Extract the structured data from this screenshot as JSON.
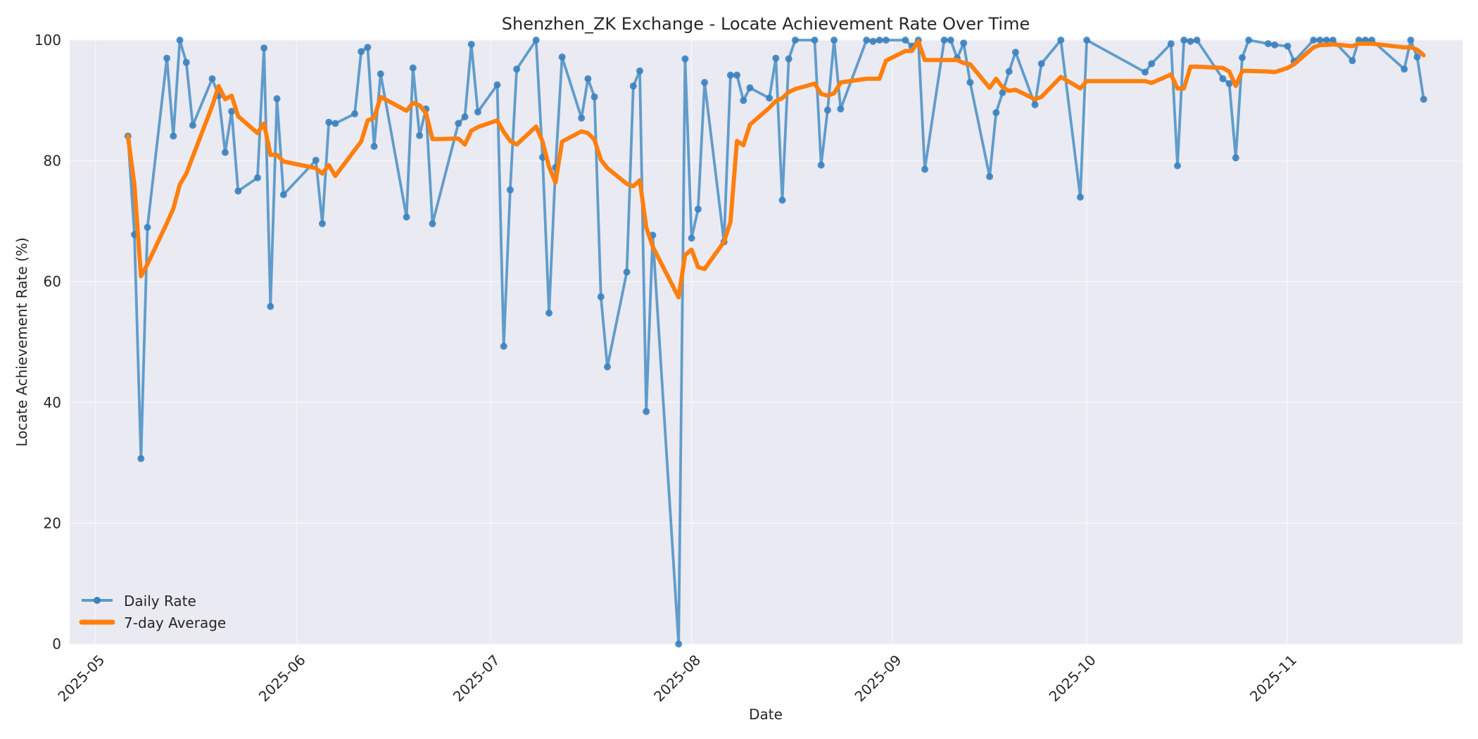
{
  "chart_data": {
    "type": "line",
    "title": "Shenzhen_ZK Exchange - Locate Achievement Rate Over Time",
    "xlabel": "Date",
    "ylabel": "Locate Achievement Rate (%)",
    "ylim": [
      0,
      100
    ],
    "xlim": [
      "2025-04-27",
      "2025-11-28"
    ],
    "grid": true,
    "legend_position": "lower left",
    "y_ticks": [
      0,
      20,
      40,
      60,
      80,
      100
    ],
    "x_ticks": [
      "2025-05",
      "2025-06",
      "2025-07",
      "2025-08",
      "2025-09",
      "2025-10",
      "2025-11"
    ],
    "colors": {
      "daily": "#4c91c5",
      "avg": "#ff7f0e",
      "plot_bg": "#eaeaf2",
      "grid": "#f4f4f8"
    },
    "series": [
      {
        "name": "Daily Rate",
        "style": "line-with-markers",
        "points": [
          [
            "2025-05-06",
            84.1
          ],
          [
            "2025-05-07",
            67.8
          ],
          [
            "2025-05-08",
            30.7
          ],
          [
            "2025-05-09",
            69.0
          ],
          [
            "2025-05-12",
            97.0
          ],
          [
            "2025-05-13",
            84.1
          ],
          [
            "2025-05-14",
            100.0
          ],
          [
            "2025-05-15",
            96.3
          ],
          [
            "2025-05-16",
            85.9
          ],
          [
            "2025-05-19",
            93.6
          ],
          [
            "2025-05-20",
            90.8
          ],
          [
            "2025-05-21",
            81.4
          ],
          [
            "2025-05-22",
            88.2
          ],
          [
            "2025-05-23",
            75.0
          ],
          [
            "2025-05-26",
            77.2
          ],
          [
            "2025-05-27",
            98.7
          ],
          [
            "2025-05-28",
            55.9
          ],
          [
            "2025-05-29",
            90.3
          ],
          [
            "2025-05-30",
            74.4
          ],
          [
            "2025-06-04",
            80.1
          ],
          [
            "2025-06-05",
            69.6
          ],
          [
            "2025-06-06",
            86.4
          ],
          [
            "2025-06-07",
            86.2
          ],
          [
            "2025-06-10",
            87.8
          ],
          [
            "2025-06-11",
            98.1
          ],
          [
            "2025-06-12",
            98.8
          ],
          [
            "2025-06-13",
            82.4
          ],
          [
            "2025-06-14",
            94.4
          ],
          [
            "2025-06-18",
            70.7
          ],
          [
            "2025-06-19",
            95.4
          ],
          [
            "2025-06-20",
            84.2
          ],
          [
            "2025-06-21",
            88.6
          ],
          [
            "2025-06-22",
            69.6
          ],
          [
            "2025-06-26",
            86.2
          ],
          [
            "2025-06-27",
            87.3
          ],
          [
            "2025-06-28",
            99.3
          ],
          [
            "2025-06-29",
            88.1
          ],
          [
            "2025-07-02",
            92.6
          ],
          [
            "2025-07-03",
            49.3
          ],
          [
            "2025-07-04",
            75.2
          ],
          [
            "2025-07-05",
            95.2
          ],
          [
            "2025-07-08",
            100.0
          ],
          [
            "2025-07-09",
            80.6
          ],
          [
            "2025-07-10",
            54.8
          ],
          [
            "2025-07-11",
            78.9
          ],
          [
            "2025-07-12",
            97.2
          ],
          [
            "2025-07-15",
            87.1
          ],
          [
            "2025-07-16",
            93.6
          ],
          [
            "2025-07-17",
            90.6
          ],
          [
            "2025-07-18",
            57.5
          ],
          [
            "2025-07-19",
            45.9
          ],
          [
            "2025-07-22",
            61.6
          ],
          [
            "2025-07-23",
            92.4
          ],
          [
            "2025-07-24",
            94.9
          ],
          [
            "2025-07-25",
            38.5
          ],
          [
            "2025-07-26",
            67.7
          ],
          [
            "2025-07-30",
            0.0
          ],
          [
            "2025-07-31",
            96.9
          ],
          [
            "2025-08-01",
            67.2
          ],
          [
            "2025-08-02",
            72.0
          ],
          [
            "2025-08-03",
            93.0
          ],
          [
            "2025-08-06",
            66.6
          ],
          [
            "2025-08-07",
            94.2
          ],
          [
            "2025-08-08",
            94.2
          ],
          [
            "2025-08-09",
            90.0
          ],
          [
            "2025-08-10",
            92.1
          ],
          [
            "2025-08-13",
            90.4
          ],
          [
            "2025-08-14",
            97.0
          ],
          [
            "2025-08-15",
            73.5
          ],
          [
            "2025-08-16",
            96.9
          ],
          [
            "2025-08-17",
            100.0
          ],
          [
            "2025-08-20",
            100.0
          ],
          [
            "2025-08-21",
            79.3
          ],
          [
            "2025-08-22",
            88.4
          ],
          [
            "2025-08-23",
            100.0
          ],
          [
            "2025-08-24",
            88.6
          ],
          [
            "2025-08-28",
            100.0
          ],
          [
            "2025-08-29",
            99.8
          ],
          [
            "2025-08-30",
            100.0
          ],
          [
            "2025-08-31",
            100.0
          ],
          [
            "2025-09-03",
            100.0
          ],
          [
            "2025-09-04",
            99.0
          ],
          [
            "2025-09-05",
            100.0
          ],
          [
            "2025-09-06",
            78.6
          ],
          [
            "2025-09-09",
            100.0
          ],
          [
            "2025-09-10",
            100.0
          ],
          [
            "2025-09-11",
            97.0
          ],
          [
            "2025-09-12",
            99.5
          ],
          [
            "2025-09-13",
            93.0
          ],
          [
            "2025-09-16",
            77.4
          ],
          [
            "2025-09-17",
            88.0
          ],
          [
            "2025-09-18",
            91.3
          ],
          [
            "2025-09-19",
            94.8
          ],
          [
            "2025-09-20",
            98.0
          ],
          [
            "2025-09-23",
            89.3
          ],
          [
            "2025-09-24",
            96.1
          ],
          [
            "2025-09-27",
            100.0
          ],
          [
            "2025-09-30",
            74.0
          ],
          [
            "2025-10-01",
            100.0
          ],
          [
            "2025-10-10",
            94.7
          ],
          [
            "2025-10-11",
            96.1
          ],
          [
            "2025-10-14",
            99.4
          ],
          [
            "2025-10-15",
            79.2
          ],
          [
            "2025-10-16",
            100.0
          ],
          [
            "2025-10-17",
            99.8
          ],
          [
            "2025-10-18",
            100.0
          ],
          [
            "2025-10-22",
            93.6
          ],
          [
            "2025-10-23",
            92.8
          ],
          [
            "2025-10-24",
            80.5
          ],
          [
            "2025-10-25",
            97.1
          ],
          [
            "2025-10-26",
            100.0
          ],
          [
            "2025-10-29",
            99.4
          ],
          [
            "2025-10-30",
            99.2
          ],
          [
            "2025-11-01",
            99.0
          ],
          [
            "2025-11-02",
            96.5
          ],
          [
            "2025-11-05",
            100.0
          ],
          [
            "2025-11-06",
            100.0
          ],
          [
            "2025-11-07",
            100.0
          ],
          [
            "2025-11-08",
            100.0
          ],
          [
            "2025-11-11",
            96.6
          ],
          [
            "2025-11-12",
            100.0
          ],
          [
            "2025-11-13",
            100.0
          ],
          [
            "2025-11-14",
            100.0
          ],
          [
            "2025-11-19",
            95.2
          ],
          [
            "2025-11-20",
            100.0
          ],
          [
            "2025-11-21",
            97.2
          ],
          [
            "2025-11-22",
            90.2
          ]
        ]
      },
      {
        "name": "7-day Average",
        "style": "line",
        "points": [
          [
            "2025-05-06",
            84.1
          ],
          [
            "2025-05-07",
            76.0
          ],
          [
            "2025-05-08",
            60.9
          ],
          [
            "2025-05-09",
            62.9
          ],
          [
            "2025-05-12",
            69.7
          ],
          [
            "2025-05-13",
            72.1
          ],
          [
            "2025-05-14",
            76.1
          ],
          [
            "2025-05-15",
            77.9
          ],
          [
            "2025-05-16",
            80.7
          ],
          [
            "2025-05-19",
            89.1
          ],
          [
            "2025-05-20",
            92.4
          ],
          [
            "2025-05-21",
            90.2
          ],
          [
            "2025-05-22",
            90.8
          ],
          [
            "2025-05-23",
            87.4
          ],
          [
            "2025-05-26",
            84.6
          ],
          [
            "2025-05-27",
            86.2
          ],
          [
            "2025-05-28",
            81.0
          ],
          [
            "2025-05-29",
            81.0
          ],
          [
            "2025-05-30",
            79.9
          ],
          [
            "2025-06-04",
            78.8
          ],
          [
            "2025-06-05",
            77.9
          ],
          [
            "2025-06-06",
            79.3
          ],
          [
            "2025-06-07",
            77.5
          ],
          [
            "2025-06-10",
            81.8
          ],
          [
            "2025-06-11",
            83.2
          ],
          [
            "2025-06-12",
            86.7
          ],
          [
            "2025-06-13",
            87.1
          ],
          [
            "2025-06-14",
            90.6
          ],
          [
            "2025-06-18",
            88.3
          ],
          [
            "2025-06-19",
            89.6
          ],
          [
            "2025-06-20",
            89.2
          ],
          [
            "2025-06-21",
            87.9
          ],
          [
            "2025-06-22",
            83.6
          ],
          [
            "2025-06-26",
            83.7
          ],
          [
            "2025-06-27",
            82.7
          ],
          [
            "2025-06-28",
            85.0
          ],
          [
            "2025-06-29",
            85.6
          ],
          [
            "2025-07-02",
            86.7
          ],
          [
            "2025-07-03",
            84.8
          ],
          [
            "2025-07-04",
            83.3
          ],
          [
            "2025-07-05",
            82.7
          ],
          [
            "2025-07-08",
            85.7
          ],
          [
            "2025-07-09",
            83.2
          ],
          [
            "2025-07-10",
            79.0
          ],
          [
            "2025-07-11",
            76.4
          ],
          [
            "2025-07-12",
            83.2
          ],
          [
            "2025-07-15",
            84.9
          ],
          [
            "2025-07-16",
            84.6
          ],
          [
            "2025-07-17",
            83.5
          ],
          [
            "2025-07-18",
            80.2
          ],
          [
            "2025-07-19",
            78.8
          ],
          [
            "2025-07-22",
            76.2
          ],
          [
            "2025-07-23",
            75.8
          ],
          [
            "2025-07-24",
            76.8
          ],
          [
            "2025-07-25",
            69.0
          ],
          [
            "2025-07-26",
            65.8
          ],
          [
            "2025-07-30",
            57.4
          ],
          [
            "2025-07-31",
            64.4
          ],
          [
            "2025-08-01",
            65.3
          ],
          [
            "2025-08-02",
            62.4
          ],
          [
            "2025-08-03",
            62.1
          ],
          [
            "2025-08-06",
            66.6
          ],
          [
            "2025-08-07",
            69.9
          ],
          [
            "2025-08-08",
            83.3
          ],
          [
            "2025-08-09",
            82.6
          ],
          [
            "2025-08-10",
            86.0
          ],
          [
            "2025-08-13",
            88.8
          ],
          [
            "2025-08-14",
            89.9
          ],
          [
            "2025-08-15",
            90.4
          ],
          [
            "2025-08-16",
            91.4
          ],
          [
            "2025-08-17",
            91.9
          ],
          [
            "2025-08-20",
            92.8
          ],
          [
            "2025-08-21",
            91.1
          ],
          [
            "2025-08-22",
            90.8
          ],
          [
            "2025-08-23",
            91.2
          ],
          [
            "2025-08-24",
            93.0
          ],
          [
            "2025-08-28",
            93.6
          ],
          [
            "2025-08-29",
            93.6
          ],
          [
            "2025-08-30",
            93.6
          ],
          [
            "2025-08-31",
            96.6
          ],
          [
            "2025-09-03",
            98.2
          ],
          [
            "2025-09-04",
            98.2
          ],
          [
            "2025-09-05",
            99.8
          ],
          [
            "2025-09-06",
            96.7
          ],
          [
            "2025-09-09",
            96.7
          ],
          [
            "2025-09-10",
            96.7
          ],
          [
            "2025-09-11",
            96.7
          ],
          [
            "2025-09-12",
            96.2
          ],
          [
            "2025-09-13",
            96.0
          ],
          [
            "2025-09-16",
            92.1
          ],
          [
            "2025-09-17",
            93.6
          ],
          [
            "2025-09-18",
            92.2
          ],
          [
            "2025-09-19",
            91.6
          ],
          [
            "2025-09-20",
            91.8
          ],
          [
            "2025-09-23",
            90.2
          ],
          [
            "2025-09-24",
            90.6
          ],
          [
            "2025-09-27",
            93.9
          ],
          [
            "2025-09-30",
            92.0
          ],
          [
            "2025-10-01",
            93.2
          ],
          [
            "2025-10-10",
            93.2
          ],
          [
            "2025-10-11",
            92.9
          ],
          [
            "2025-10-14",
            94.3
          ],
          [
            "2025-10-15",
            92.0
          ],
          [
            "2025-10-16",
            92.0
          ],
          [
            "2025-10-17",
            95.6
          ],
          [
            "2025-10-18",
            95.6
          ],
          [
            "2025-10-22",
            95.4
          ],
          [
            "2025-10-23",
            94.8
          ],
          [
            "2025-10-24",
            92.4
          ],
          [
            "2025-10-25",
            94.9
          ],
          [
            "2025-10-26",
            94.9
          ],
          [
            "2025-10-29",
            94.8
          ],
          [
            "2025-10-30",
            94.7
          ],
          [
            "2025-11-01",
            95.4
          ],
          [
            "2025-11-02",
            96.0
          ],
          [
            "2025-11-05",
            98.8
          ],
          [
            "2025-11-06",
            99.2
          ],
          [
            "2025-11-07",
            99.2
          ],
          [
            "2025-11-08",
            99.3
          ],
          [
            "2025-11-11",
            99.0
          ],
          [
            "2025-11-12",
            99.4
          ],
          [
            "2025-11-13",
            99.4
          ],
          [
            "2025-11-14",
            99.4
          ],
          [
            "2025-11-19",
            98.8
          ],
          [
            "2025-11-20",
            98.8
          ],
          [
            "2025-11-21",
            98.4
          ],
          [
            "2025-11-22",
            97.5
          ]
        ]
      }
    ]
  },
  "legend": {
    "items": [
      {
        "label": "Daily Rate"
      },
      {
        "label": "7-day Average"
      }
    ]
  }
}
